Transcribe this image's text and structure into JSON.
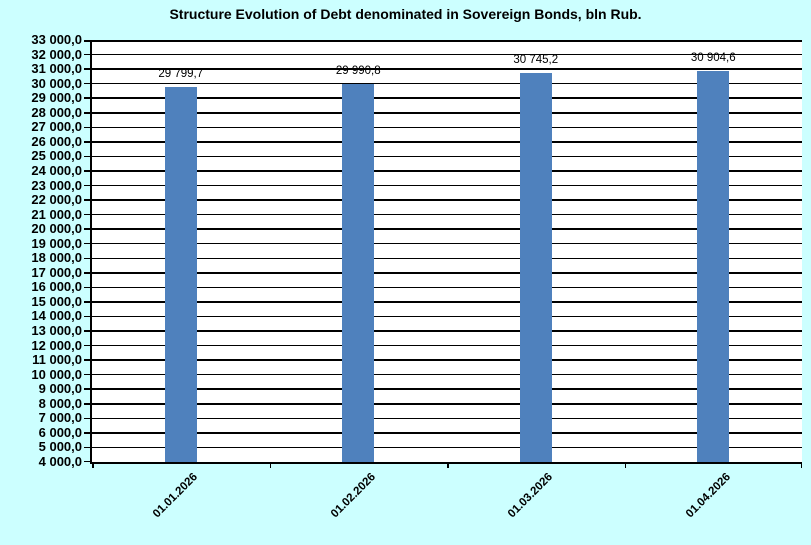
{
  "page": {
    "background_color": "#CCFFFF",
    "plot_background_color": "#FFFFFF",
    "gridline_color": "#000000"
  },
  "chart_data": {
    "type": "bar",
    "title": "Structure Evolution of Debt denominated in Sovereign Bonds, bln Rub.",
    "categories": [
      "01.01.2026",
      "01.02.2026",
      "01.03.2026",
      "01.04.2026"
    ],
    "values": [
      29799.7,
      29990.8,
      30745.2,
      30904.6
    ],
    "data_labels": [
      "29 799,7",
      "29 990,8",
      "30 745,2",
      "30 904,6"
    ],
    "bar_color": "#4F81BD",
    "ylim": [
      4000,
      33000
    ],
    "y_tick_step": 1000,
    "y_tick_labels": [
      "4 000,0",
      "5 000,0",
      "6 000,0",
      "7 000,0",
      "8 000,0",
      "9 000,0",
      "10 000,0",
      "11 000,0",
      "12 000,0",
      "13 000,0",
      "14 000,0",
      "15 000,0",
      "16 000,0",
      "17 000,0",
      "18 000,0",
      "19 000,0",
      "20 000,0",
      "21 000,0",
      "22 000,0",
      "23 000,0",
      "24 000,0",
      "25 000,0",
      "26 000,0",
      "27 000,0",
      "28 000,0",
      "29 000,0",
      "30 000,0",
      "31 000,0",
      "32 000,0",
      "33 000,0"
    ],
    "xlabel": "",
    "ylabel": "",
    "grid": true,
    "legend": "none"
  }
}
